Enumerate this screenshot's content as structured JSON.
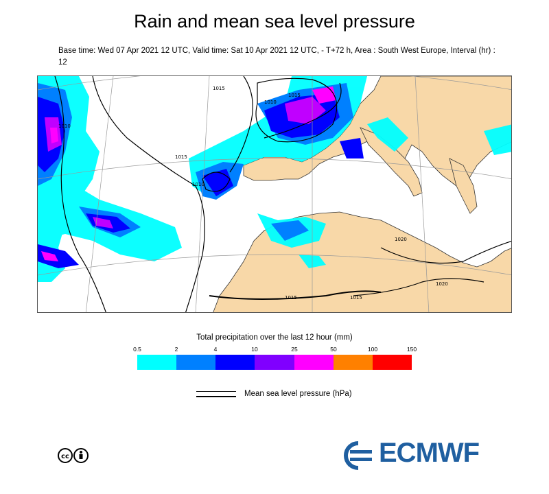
{
  "title": "Rain and mean sea level pressure",
  "subtitle": "Base time: Wed 07 Apr 2021 12 UTC, Valid time: Sat 10 Apr 2021 12 UTC, - T+72 h, Area : South West Europe, Interval (hr) : 12",
  "map": {
    "isobar_labels": [
      "1010",
      "1015",
      "1010",
      "1010",
      "1015",
      "1020",
      "1015",
      "1015",
      "1015",
      "1020"
    ],
    "colors": {
      "land": "#f8d8a8",
      "sea": "#ffffff",
      "coast": "#333333"
    }
  },
  "legend": {
    "title": "Total precipitation over the last 12 hour (mm)",
    "ticks": [
      "0.5",
      "2",
      "4",
      "10",
      "25",
      "50",
      "100",
      "150"
    ],
    "colors": [
      "#00ffff",
      "#0080ff",
      "#0000ff",
      "#8000ff",
      "#ff00ff",
      "#ff8000",
      "#ff0000"
    ],
    "isobar_label": "Mean sea level pressure (hPa)"
  },
  "footer": {
    "logo_text": "ECMWF",
    "license_icon": "cc-by-icon"
  }
}
